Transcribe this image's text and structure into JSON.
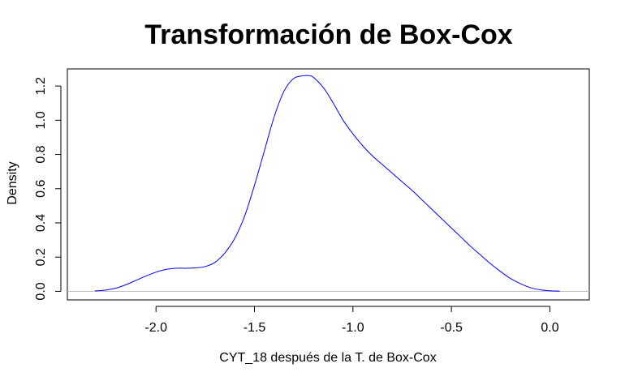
{
  "chart_data": {
    "type": "line",
    "title": "Transformación de Box-Cox",
    "xlabel": "CYT_18 después de la T. de Box-Cox",
    "ylabel": "Density",
    "xlim": [
      -2.45,
      0.2
    ],
    "ylim": [
      -0.05,
      1.3
    ],
    "xticks": [
      -2.0,
      -1.5,
      -1.0,
      -0.5,
      0.0
    ],
    "xtick_labels": [
      "-2.0",
      "-1.5",
      "-1.0",
      "-0.5",
      "0.0"
    ],
    "yticks": [
      0.0,
      0.2,
      0.4,
      0.6,
      0.8,
      1.0,
      1.2
    ],
    "ytick_labels": [
      "0.0",
      "0.2",
      "0.4",
      "0.6",
      "0.8",
      "1.0",
      "1.2"
    ],
    "grid": false,
    "baseline": {
      "y": 0.0,
      "color": "#bebebe"
    },
    "series": [
      {
        "color": "#0000ff",
        "x": [
          -2.31,
          -2.25,
          -2.2,
          -2.15,
          -2.1,
          -2.05,
          -2.0,
          -1.95,
          -1.9,
          -1.85,
          -1.8,
          -1.75,
          -1.7,
          -1.65,
          -1.6,
          -1.55,
          -1.5,
          -1.45,
          -1.4,
          -1.35,
          -1.3,
          -1.25,
          -1.22,
          -1.2,
          -1.15,
          -1.1,
          -1.05,
          -1.0,
          -0.95,
          -0.9,
          -0.85,
          -0.8,
          -0.75,
          -0.7,
          -0.65,
          -0.6,
          -0.55,
          -0.5,
          -0.45,
          -0.4,
          -0.35,
          -0.3,
          -0.25,
          -0.2,
          -0.15,
          -0.1,
          -0.05,
          0.0,
          0.05
        ],
        "y": [
          0.002,
          0.008,
          0.02,
          0.04,
          0.065,
          0.09,
          0.112,
          0.128,
          0.135,
          0.135,
          0.137,
          0.145,
          0.17,
          0.225,
          0.31,
          0.44,
          0.62,
          0.82,
          1.02,
          1.17,
          1.245,
          1.26,
          1.26,
          1.25,
          1.19,
          1.1,
          1.0,
          0.92,
          0.85,
          0.79,
          0.74,
          0.69,
          0.64,
          0.59,
          0.535,
          0.48,
          0.425,
          0.37,
          0.315,
          0.26,
          0.21,
          0.16,
          0.115,
          0.075,
          0.045,
          0.022,
          0.009,
          0.003,
          0.001
        ]
      }
    ]
  }
}
